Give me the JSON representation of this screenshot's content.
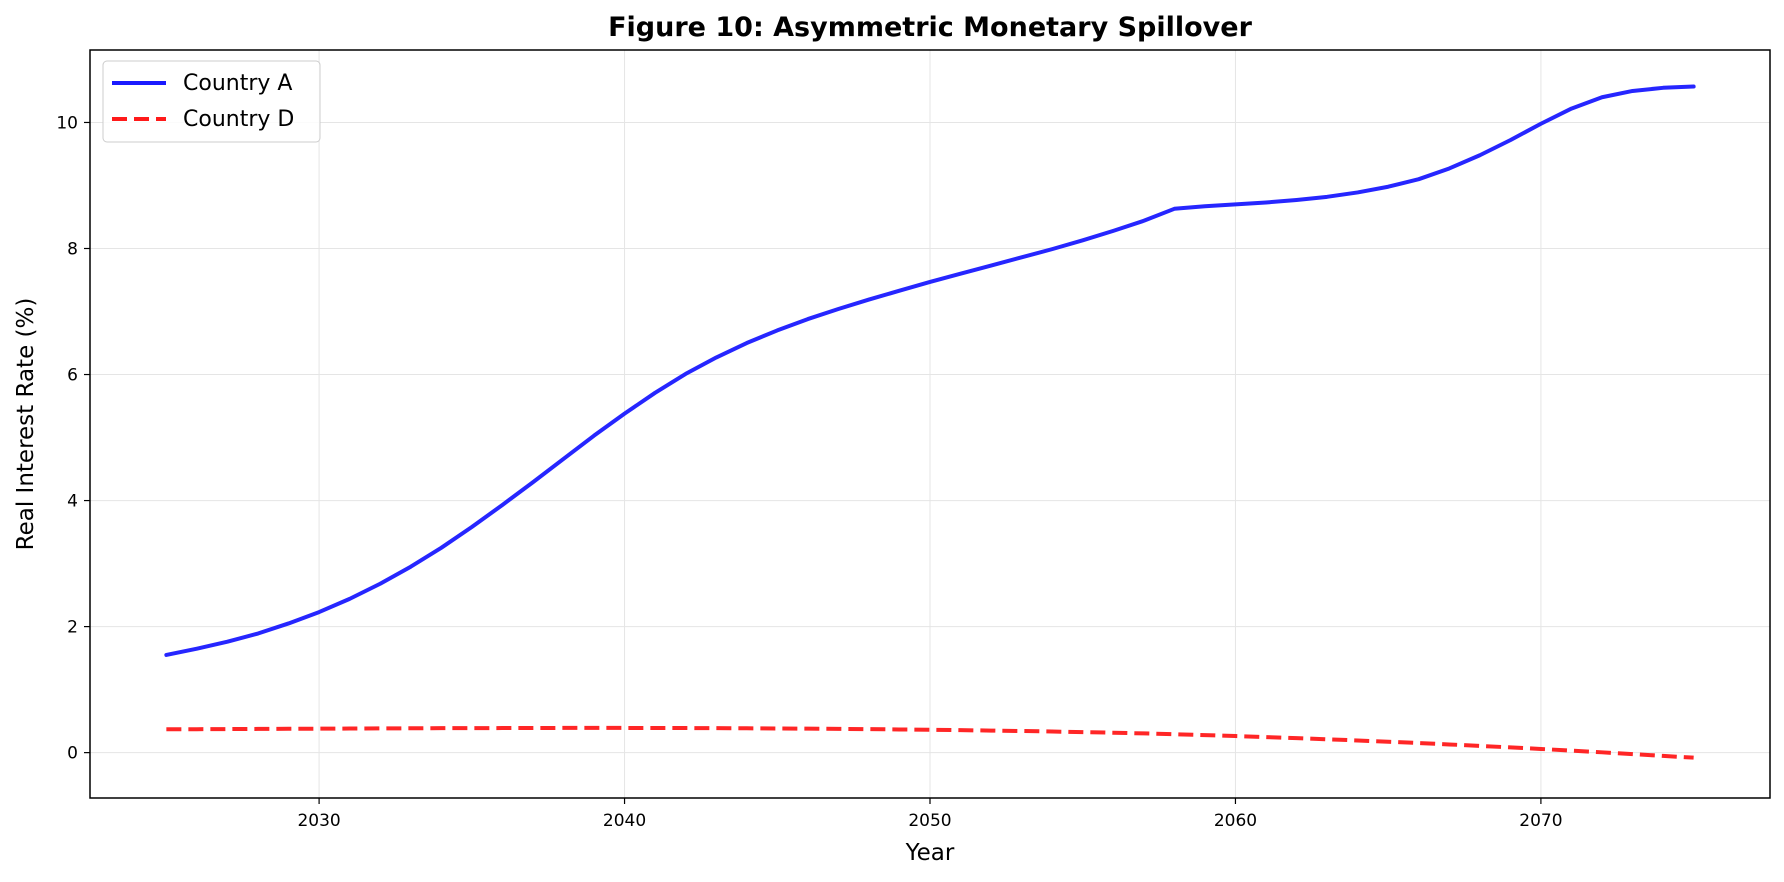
{
  "chart_data": {
    "type": "line",
    "title": "Figure 10: Asymmetric Monetary Spillover",
    "xlabel": "Year",
    "ylabel": "Real Interest Rate (%)",
    "xlim": [
      2022.5,
      2077.5
    ],
    "ylim": [
      -0.72,
      11.15
    ],
    "xticks": [
      2030,
      2040,
      2050,
      2060,
      2070
    ],
    "yticks": [
      0,
      2,
      4,
      6,
      8,
      10
    ],
    "grid": true,
    "legend_position": "top-left",
    "x": [
      2025,
      2026,
      2027,
      2028,
      2029,
      2030,
      2031,
      2032,
      2033,
      2034,
      2035,
      2036,
      2037,
      2038,
      2039,
      2040,
      2041,
      2042,
      2043,
      2044,
      2045,
      2046,
      2047,
      2048,
      2049,
      2050,
      2051,
      2052,
      2053,
      2054,
      2055,
      2056,
      2057,
      2058,
      2059,
      2060,
      2061,
      2062,
      2063,
      2064,
      2065,
      2066,
      2067,
      2068,
      2069,
      2070,
      2071,
      2072,
      2073,
      2074,
      2075
    ],
    "series": [
      {
        "name": "Country A",
        "color": "#1a1aff",
        "style": "solid",
        "values": [
          1.55,
          1.65,
          1.76,
          1.89,
          2.05,
          2.23,
          2.44,
          2.68,
          2.95,
          3.25,
          3.58,
          3.93,
          4.29,
          4.66,
          5.03,
          5.38,
          5.71,
          6.01,
          6.27,
          6.5,
          6.7,
          6.88,
          7.04,
          7.19,
          7.33,
          7.47,
          7.6,
          7.73,
          7.86,
          7.99,
          8.13,
          8.28,
          8.44,
          8.63,
          8.67,
          8.7,
          8.73,
          8.77,
          8.82,
          8.89,
          8.98,
          9.1,
          9.27,
          9.48,
          9.72,
          9.98,
          10.22,
          10.4,
          10.5,
          10.55,
          10.57
        ]
      },
      {
        "name": "Country D",
        "color": "#ff1a1a",
        "style": "dashed",
        "values": [
          0.37,
          0.372,
          0.374,
          0.376,
          0.378,
          0.38,
          0.382,
          0.384,
          0.386,
          0.388,
          0.389,
          0.39,
          0.391,
          0.392,
          0.392,
          0.392,
          0.391,
          0.39,
          0.388,
          0.386,
          0.383,
          0.38,
          0.377,
          0.373,
          0.368,
          0.363,
          0.357,
          0.35,
          0.343,
          0.335,
          0.326,
          0.316,
          0.305,
          0.292,
          0.278,
          0.263,
          0.247,
          0.23,
          0.212,
          0.193,
          0.173,
          0.152,
          0.13,
          0.107,
          0.083,
          0.058,
          0.032,
          0.005,
          -0.023,
          -0.052,
          -0.08
        ]
      }
    ]
  }
}
